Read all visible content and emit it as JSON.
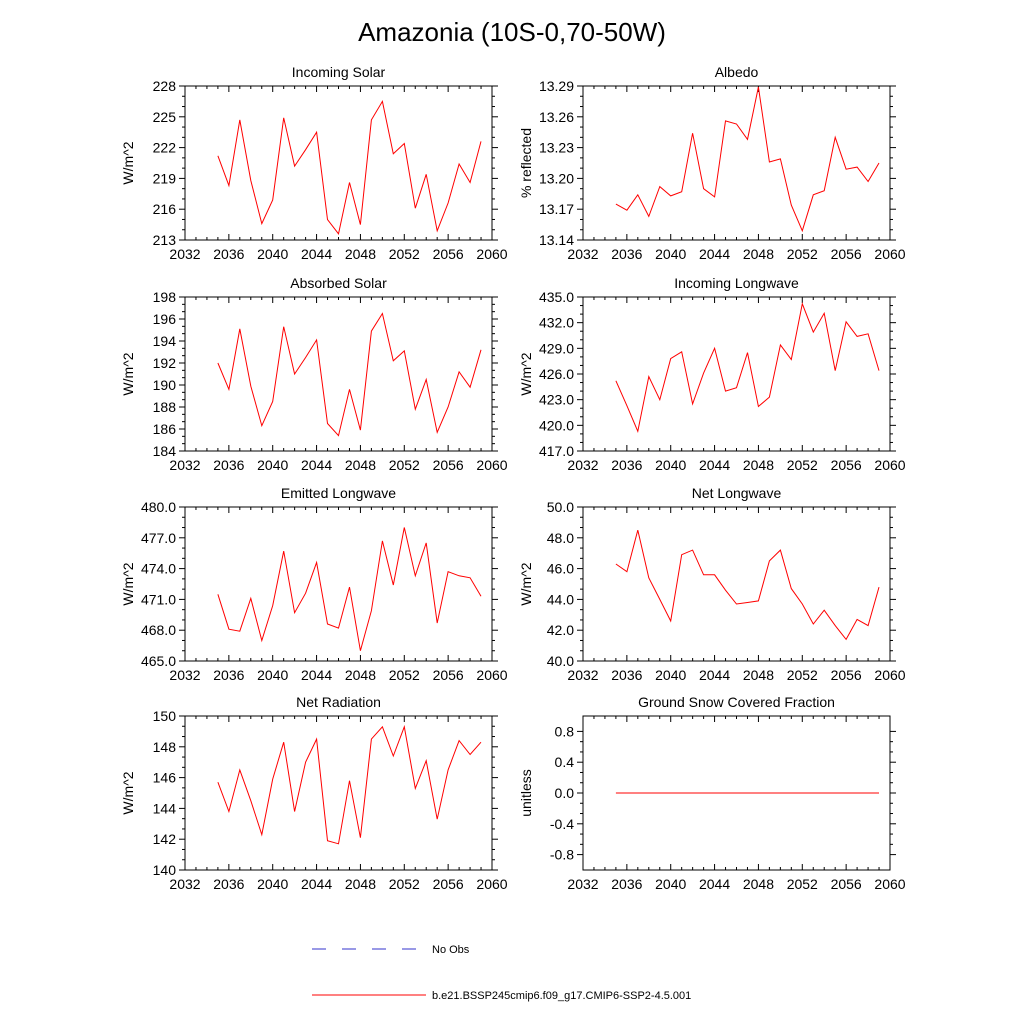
{
  "figure_title": "Amazonia (10S-0,70-50W)",
  "colors": {
    "model": "#ff0000",
    "obs": "#3333cc",
    "axis": "#000000"
  },
  "legend": {
    "obs_label": "No Obs",
    "model_label": "b.e21.BSSP245cmip6.f09_g17.CMIP6-SSP2-4.5.001"
  },
  "chart_data": [
    {
      "type": "line",
      "title": "Incoming Solar",
      "ylabel": "W/m^2",
      "xlim": [
        2032,
        2060
      ],
      "xticks": [
        2032,
        2036,
        2040,
        2044,
        2048,
        2052,
        2056,
        2060
      ],
      "ylim": [
        213,
        228
      ],
      "yticks": [
        213,
        216,
        219,
        222,
        225,
        228
      ],
      "ytick_labels": [
        "213",
        "216",
        "219",
        "222",
        "225",
        "228"
      ],
      "x": [
        2035,
        2036,
        2037,
        2038,
        2039,
        2040,
        2041,
        2042,
        2043,
        2044,
        2045,
        2046,
        2047,
        2048,
        2049,
        2050,
        2051,
        2052,
        2053,
        2054,
        2055,
        2056,
        2057,
        2058,
        2059
      ],
      "values": [
        221.2,
        218.3,
        224.7,
        218.8,
        214.6,
        216.9,
        224.9,
        220.2,
        221.8,
        223.5,
        215.0,
        213.6,
        218.6,
        214.5,
        224.7,
        226.5,
        221.4,
        222.4,
        216.1,
        219.4,
        213.9,
        216.6,
        220.4,
        218.6,
        222.6
      ]
    },
    {
      "type": "line",
      "title": "Albedo",
      "ylabel": "% reflected",
      "xlim": [
        2032,
        2060
      ],
      "xticks": [
        2032,
        2036,
        2040,
        2044,
        2048,
        2052,
        2056,
        2060
      ],
      "ylim": [
        13.14,
        13.29
      ],
      "yticks": [
        13.14,
        13.17,
        13.2,
        13.23,
        13.26,
        13.29
      ],
      "ytick_labels": [
        "13.14",
        "13.17",
        "13.20",
        "13.23",
        "13.26",
        "13.29"
      ],
      "x": [
        2035,
        2036,
        2037,
        2038,
        2039,
        2040,
        2041,
        2042,
        2043,
        2044,
        2045,
        2046,
        2047,
        2048,
        2049,
        2050,
        2051,
        2052,
        2053,
        2054,
        2055,
        2056,
        2057,
        2058,
        2059
      ],
      "values": [
        13.175,
        13.169,
        13.184,
        13.163,
        13.192,
        13.183,
        13.187,
        13.244,
        13.19,
        13.182,
        13.256,
        13.253,
        13.238,
        13.289,
        13.216,
        13.219,
        13.174,
        13.149,
        13.184,
        13.188,
        13.24,
        13.209,
        13.211,
        13.197,
        13.215
      ]
    },
    {
      "type": "line",
      "title": "Absorbed Solar",
      "ylabel": "W/m^2",
      "xlim": [
        2032,
        2060
      ],
      "xticks": [
        2032,
        2036,
        2040,
        2044,
        2048,
        2052,
        2056,
        2060
      ],
      "ylim": [
        184,
        198
      ],
      "yticks": [
        184,
        186,
        188,
        190,
        192,
        194,
        196,
        198
      ],
      "ytick_labels": [
        "184",
        "186",
        "188",
        "190",
        "192",
        "194",
        "196",
        "198"
      ],
      "x": [
        2035,
        2036,
        2037,
        2038,
        2039,
        2040,
        2041,
        2042,
        2043,
        2044,
        2045,
        2046,
        2047,
        2048,
        2049,
        2050,
        2051,
        2052,
        2053,
        2054,
        2055,
        2056,
        2057,
        2058,
        2059
      ],
      "values": [
        192.0,
        189.6,
        195.1,
        189.9,
        186.3,
        188.5,
        195.3,
        191.0,
        192.5,
        194.1,
        186.5,
        185.4,
        189.6,
        185.9,
        194.9,
        196.5,
        192.2,
        193.1,
        187.8,
        190.5,
        185.7,
        188.0,
        191.2,
        189.8,
        193.2
      ]
    },
    {
      "type": "line",
      "title": "Incoming Longwave",
      "ylabel": "W/m^2",
      "xlim": [
        2032,
        2060
      ],
      "xticks": [
        2032,
        2036,
        2040,
        2044,
        2048,
        2052,
        2056,
        2060
      ],
      "ylim": [
        417.0,
        435.0
      ],
      "yticks": [
        417,
        420,
        423,
        426,
        429,
        432,
        435
      ],
      "ytick_labels": [
        "417.0",
        "420.0",
        "423.0",
        "426.0",
        "429.0",
        "432.0",
        "435.0"
      ],
      "x": [
        2035,
        2036,
        2037,
        2038,
        2039,
        2040,
        2041,
        2042,
        2043,
        2044,
        2045,
        2046,
        2047,
        2048,
        2049,
        2050,
        2051,
        2052,
        2053,
        2054,
        2055,
        2056,
        2057,
        2058,
        2059
      ],
      "values": [
        425.2,
        422.3,
        419.3,
        425.7,
        423.0,
        427.8,
        428.6,
        422.5,
        426.1,
        429.0,
        424.0,
        424.4,
        428.5,
        422.2,
        423.3,
        429.4,
        427.7,
        434.2,
        430.9,
        433.1,
        426.4,
        432.1,
        430.4,
        430.7,
        426.4
      ]
    },
    {
      "type": "line",
      "title": "Emitted Longwave",
      "ylabel": "W/m^2",
      "xlim": [
        2032,
        2060
      ],
      "xticks": [
        2032,
        2036,
        2040,
        2044,
        2048,
        2052,
        2056,
        2060
      ],
      "ylim": [
        465.0,
        480.0
      ],
      "yticks": [
        465,
        468,
        471,
        474,
        477,
        480
      ],
      "ytick_labels": [
        "465.0",
        "468.0",
        "471.0",
        "474.0",
        "477.0",
        "480.0"
      ],
      "x": [
        2035,
        2036,
        2037,
        2038,
        2039,
        2040,
        2041,
        2042,
        2043,
        2044,
        2045,
        2046,
        2047,
        2048,
        2049,
        2050,
        2051,
        2052,
        2053,
        2054,
        2055,
        2056,
        2057,
        2058,
        2059
      ],
      "values": [
        471.5,
        468.1,
        467.9,
        471.1,
        467.0,
        470.4,
        475.7,
        469.7,
        471.6,
        474.6,
        468.6,
        468.2,
        472.2,
        466.0,
        469.9,
        476.7,
        472.4,
        478.0,
        473.3,
        476.5,
        468.7,
        473.7,
        473.3,
        473.1,
        471.3
      ]
    },
    {
      "type": "line",
      "title": "Net Longwave",
      "ylabel": "W/m^2",
      "xlim": [
        2032,
        2060
      ],
      "xticks": [
        2032,
        2036,
        2040,
        2044,
        2048,
        2052,
        2056,
        2060
      ],
      "ylim": [
        40.0,
        50.0
      ],
      "yticks": [
        40,
        42,
        44,
        46,
        48,
        50
      ],
      "ytick_labels": [
        "40.0",
        "42.0",
        "44.0",
        "46.0",
        "48.0",
        "50.0"
      ],
      "x": [
        2035,
        2036,
        2037,
        2038,
        2039,
        2040,
        2041,
        2042,
        2043,
        2044,
        2045,
        2046,
        2047,
        2048,
        2049,
        2050,
        2051,
        2052,
        2053,
        2054,
        2055,
        2056,
        2057,
        2058,
        2059
      ],
      "values": [
        46.3,
        45.8,
        48.5,
        45.4,
        44.0,
        42.6,
        46.9,
        47.2,
        45.6,
        45.6,
        44.6,
        43.7,
        43.8,
        43.9,
        46.5,
        47.2,
        44.7,
        43.7,
        42.4,
        43.3,
        42.3,
        41.4,
        42.7,
        42.3,
        44.8
      ]
    },
    {
      "type": "line",
      "title": "Net Radiation",
      "ylabel": "W/m^2",
      "xlim": [
        2032,
        2060
      ],
      "xticks": [
        2032,
        2036,
        2040,
        2044,
        2048,
        2052,
        2056,
        2060
      ],
      "ylim": [
        140,
        150
      ],
      "yticks": [
        140,
        142,
        144,
        146,
        148,
        150
      ],
      "ytick_labels": [
        "140",
        "142",
        "144",
        "146",
        "148",
        "150"
      ],
      "x": [
        2035,
        2036,
        2037,
        2038,
        2039,
        2040,
        2041,
        2042,
        2043,
        2044,
        2045,
        2046,
        2047,
        2048,
        2049,
        2050,
        2051,
        2052,
        2053,
        2054,
        2055,
        2056,
        2057,
        2058,
        2059
      ],
      "values": [
        145.7,
        143.8,
        146.5,
        144.5,
        142.3,
        145.9,
        148.3,
        143.8,
        147.0,
        148.5,
        141.9,
        141.7,
        145.8,
        142.1,
        148.5,
        149.3,
        147.4,
        149.3,
        145.3,
        147.1,
        143.3,
        146.5,
        148.4,
        147.5,
        148.3
      ]
    },
    {
      "type": "line",
      "title": "Ground Snow Covered Fraction",
      "ylabel": "unitless",
      "xlim": [
        2032,
        2060
      ],
      "xticks": [
        2032,
        2036,
        2040,
        2044,
        2048,
        2052,
        2056,
        2060
      ],
      "ylim": [
        -1.0,
        1.0
      ],
      "yticks": [
        -0.8,
        -0.4,
        0.0,
        0.4,
        0.8
      ],
      "ytick_labels": [
        "-0.8",
        "-0.4",
        "0.0",
        "0.4",
        "0.8"
      ],
      "x": [
        2035,
        2036,
        2037,
        2038,
        2039,
        2040,
        2041,
        2042,
        2043,
        2044,
        2045,
        2046,
        2047,
        2048,
        2049,
        2050,
        2051,
        2052,
        2053,
        2054,
        2055,
        2056,
        2057,
        2058,
        2059
      ],
      "values": [
        0,
        0,
        0,
        0,
        0,
        0,
        0,
        0,
        0,
        0,
        0,
        0,
        0,
        0,
        0,
        0,
        0,
        0,
        0,
        0,
        0,
        0,
        0,
        0,
        0
      ]
    }
  ]
}
